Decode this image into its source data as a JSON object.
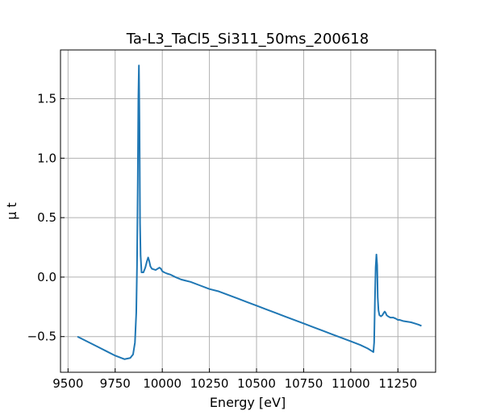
{
  "chart_data": {
    "type": "line",
    "title": "Ta-L3_TaCl5_Si311_50ms_200618",
    "xlabel": "Energy [eV]",
    "ylabel": "μ t",
    "xlim": [
      9460,
      11450
    ],
    "ylim": [
      -0.8,
      1.91
    ],
    "xticks": [
      9500,
      9750,
      10000,
      10250,
      10500,
      10750,
      11000,
      11250
    ],
    "xtick_labels": [
      "9500",
      "9750",
      "10000",
      "10250",
      "10500",
      "10750",
      "11000",
      "11250"
    ],
    "yticks": [
      -0.5,
      0.0,
      0.5,
      1.0,
      1.5
    ],
    "ytick_labels": [
      "−0.5",
      "0.0",
      "0.5",
      "1.0",
      "1.5"
    ],
    "grid": true,
    "line_color": "#1f77b4",
    "series": [
      {
        "x": [
          9550,
          9600,
          9650,
          9700,
          9750,
          9800,
          9830,
          9845,
          9855,
          9862,
          9866,
          9870,
          9873,
          9876,
          9879,
          9882,
          9885,
          9890,
          9900,
          9910,
          9918,
          9925,
          9930,
          9937,
          9945,
          9955,
          9965,
          9975,
          9985,
          9993,
          10000,
          10010,
          10025,
          10045,
          10070,
          10100,
          10125,
          10150,
          10200,
          10250,
          10300,
          10350,
          10400,
          10450,
          10500,
          10550,
          10600,
          10650,
          10700,
          10750,
          10800,
          10850,
          10900,
          10950,
          11000,
          11050,
          11090,
          11110,
          11120,
          11124,
          11128,
          11132,
          11136,
          11140,
          11143,
          11147,
          11152,
          11160,
          11168,
          11175,
          11180,
          11185,
          11190,
          11198,
          11210,
          11225,
          11240,
          11250,
          11260,
          11280,
          11300,
          11320,
          11340,
          11360,
          11375
        ],
        "y": [
          -0.5,
          -0.54,
          -0.58,
          -0.62,
          -0.66,
          -0.69,
          -0.68,
          -0.65,
          -0.55,
          -0.3,
          0.1,
          0.8,
          1.5,
          1.78,
          1.3,
          0.45,
          0.18,
          0.04,
          0.04,
          0.08,
          0.13,
          0.165,
          0.14,
          0.09,
          0.07,
          0.065,
          0.06,
          0.07,
          0.08,
          0.07,
          0.05,
          0.04,
          0.03,
          0.02,
          0.0,
          -0.02,
          -0.03,
          -0.04,
          -0.07,
          -0.1,
          -0.12,
          -0.15,
          -0.18,
          -0.21,
          -0.24,
          -0.27,
          -0.3,
          -0.33,
          -0.36,
          -0.39,
          -0.42,
          -0.45,
          -0.48,
          -0.51,
          -0.54,
          -0.57,
          -0.6,
          -0.62,
          -0.63,
          -0.55,
          -0.2,
          0.08,
          0.19,
          0.1,
          -0.17,
          -0.28,
          -0.32,
          -0.33,
          -0.32,
          -0.3,
          -0.29,
          -0.3,
          -0.32,
          -0.33,
          -0.34,
          -0.34,
          -0.35,
          -0.36,
          -0.36,
          -0.37,
          -0.375,
          -0.38,
          -0.39,
          -0.4,
          -0.41
        ]
      }
    ]
  }
}
